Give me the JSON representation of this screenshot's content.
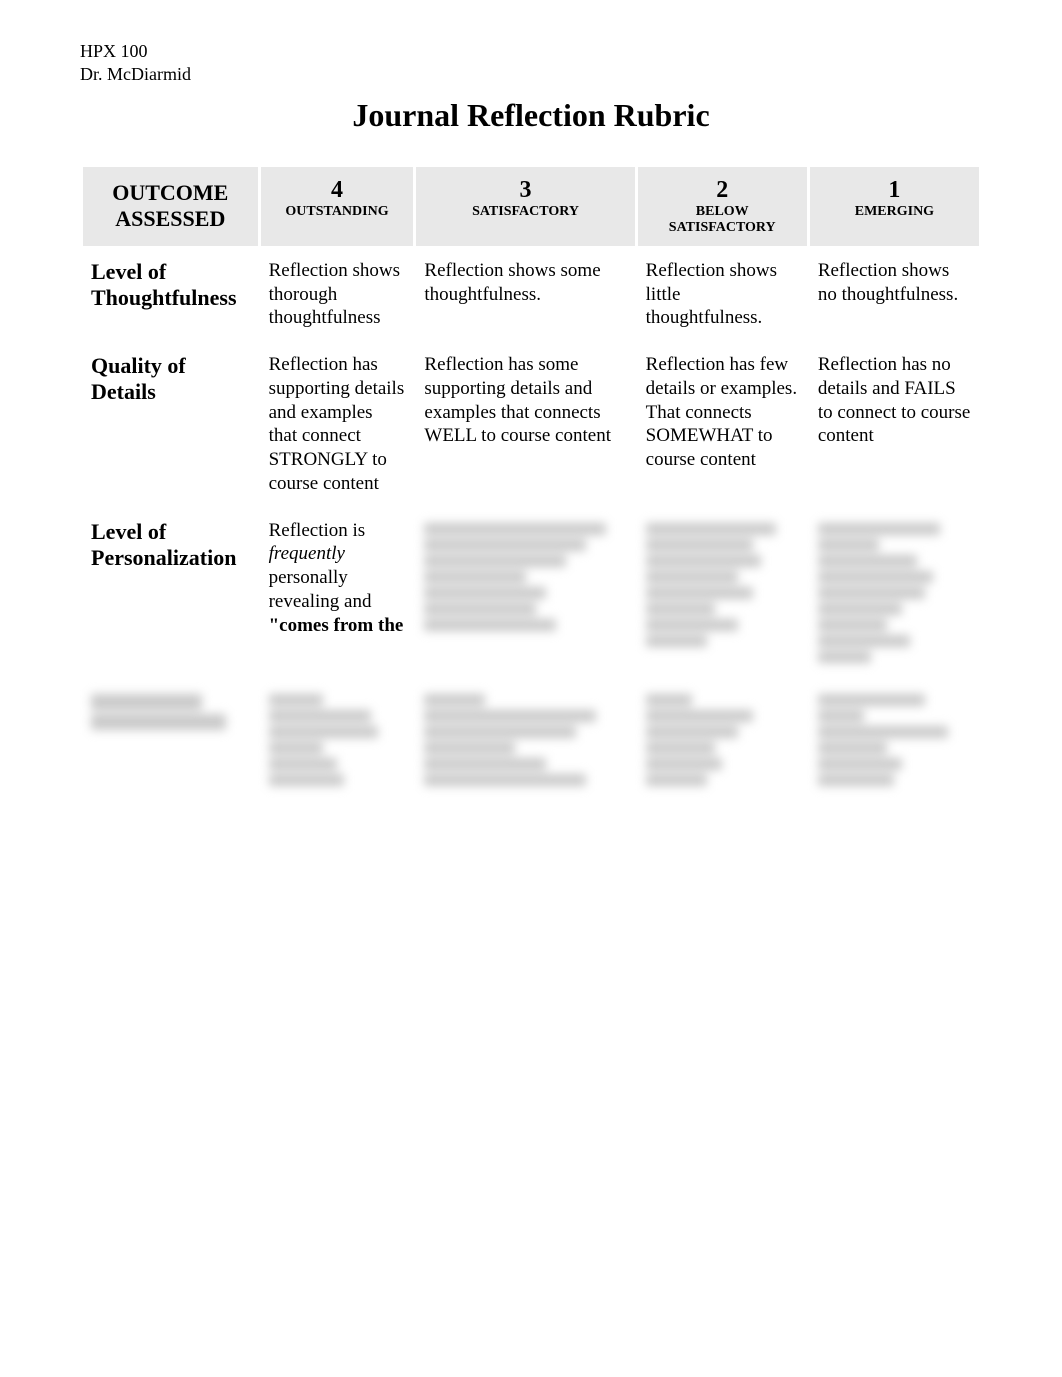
{
  "course": {
    "code": "HPX 100",
    "instructor": "Dr. McDiarmid"
  },
  "title": "Journal Reflection Rubric",
  "table": {
    "header": {
      "outcome_label": "OUTCOME ASSESSED",
      "levels": [
        {
          "num": "4",
          "label": "OUTSTANDING"
        },
        {
          "num": "3",
          "label": "SATISFACTORY"
        },
        {
          "num": "2",
          "label": "BELOW SATISFACTORY"
        },
        {
          "num": "1",
          "label": "EMERGING"
        }
      ]
    },
    "rows": [
      {
        "label": "Level of Thoughtfulness",
        "cells": [
          "Reflection shows thorough thoughtfulness",
          "Reflection shows some thoughtfulness.",
          "Reflection shows little thoughtfulness.",
          "Reflection shows no thoughtfulness."
        ]
      },
      {
        "label": "Quality of Details",
        "cells": [
          "Reflection has supporting details and examples that connect STRONGLY to course content",
          "Reflection has some supporting details and examples that connects WELL to course content",
          "Reflection has few details or examples. That connects SOMEWHAT to course content",
          "Reflection has no details and FAILS to connect to course content"
        ]
      },
      {
        "label": "Level of Personalization",
        "cells_html": [
          "Reflection is <em>frequently</em> personally revealing and <strong>\"comes from the</strong>",
          "",
          "",
          ""
        ],
        "blurred_after": 0
      }
    ],
    "blurred_row": true
  },
  "style": {
    "background": "#ffffff",
    "header_bg": "#e8e8e8",
    "text_color": "#000000",
    "blur_color": "#c9c9c9"
  }
}
